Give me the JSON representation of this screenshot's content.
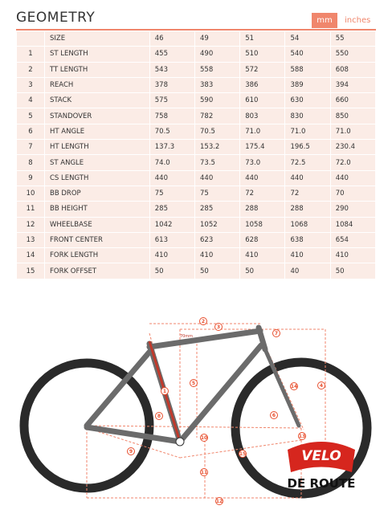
{
  "header": {
    "title": "GEOMETRY",
    "units": [
      "mm",
      "inches"
    ]
  },
  "table": {
    "columns": [
      "",
      "SIZE",
      "46",
      "49",
      "51",
      "54",
      "55"
    ],
    "rows": [
      [
        "1",
        "ST LENGTH",
        "455",
        "490",
        "510",
        "540",
        "550"
      ],
      [
        "2",
        "TT LENGTH",
        "543",
        "558",
        "572",
        "588",
        "608"
      ],
      [
        "3",
        "REACH",
        "378",
        "383",
        "386",
        "389",
        "394"
      ],
      [
        "4",
        "STACK",
        "575",
        "590",
        "610",
        "630",
        "660"
      ],
      [
        "5",
        "STANDOVER",
        "758",
        "782",
        "803",
        "830",
        "850"
      ],
      [
        "6",
        "HT ANGLE",
        "70.5",
        "70.5",
        "71.0",
        "71.0",
        "71.0"
      ],
      [
        "7",
        "HT LENGTH",
        "137.3",
        "153.2",
        "175.4",
        "196.5",
        "230.4"
      ],
      [
        "8",
        "ST ANGLE",
        "74.0",
        "73.5",
        "73.0",
        "72.5",
        "72.0"
      ],
      [
        "9",
        "CS LENGTH",
        "440",
        "440",
        "440",
        "440",
        "440"
      ],
      [
        "10",
        "BB DROP",
        "75",
        "75",
        "72",
        "72",
        "70"
      ],
      [
        "11",
        "BB HEIGHT",
        "285",
        "285",
        "288",
        "288",
        "290"
      ],
      [
        "12",
        "WHEELBASE",
        "1042",
        "1052",
        "1058",
        "1068",
        "1084"
      ],
      [
        "13",
        "FRONT CENTER",
        "613",
        "623",
        "628",
        "638",
        "654"
      ],
      [
        "14",
        "FORK LENGTH",
        "410",
        "410",
        "410",
        "410",
        "410"
      ],
      [
        "15",
        "FORK OFFSET",
        "50",
        "50",
        "50",
        "40",
        "50"
      ]
    ]
  },
  "diagram": {
    "markers": [
      "1",
      "2",
      "3",
      "4",
      "5",
      "6",
      "7",
      "8",
      "9",
      "10",
      "11",
      "12",
      "13",
      "14",
      "15"
    ],
    "note": "70mm"
  },
  "logo": {
    "top": "VELO",
    "bottom": "DE ROUTE"
  }
}
